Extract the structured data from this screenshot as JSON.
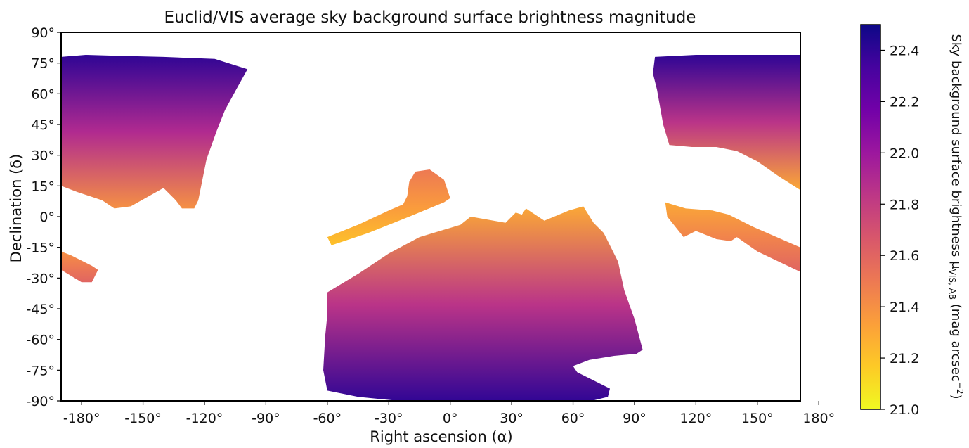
{
  "chart_data": {
    "type": "heatmap",
    "title": "Euclid/VIS average sky background surface brightness magnitude",
    "xlabel": "Right ascension (α)",
    "ylabel": "Declination  (δ)",
    "xlim": [
      -190,
      171
    ],
    "ylim": [
      -90,
      90
    ],
    "x_ticks": [
      -180,
      -150,
      -120,
      -90,
      -60,
      -30,
      0,
      30,
      60,
      90,
      120,
      150,
      180
    ],
    "x_tick_labels": [
      "-180°",
      "-150°",
      "-120°",
      "-90°",
      "-60°",
      "-30°",
      "0°",
      "30°",
      "60°",
      "90°",
      "120°",
      "150°",
      "180°"
    ],
    "y_ticks": [
      90,
      75,
      60,
      45,
      30,
      15,
      0,
      -15,
      -30,
      -45,
      -60,
      -75,
      -90
    ],
    "y_tick_labels": [
      "90°",
      "75°",
      "60°",
      "45°",
      "30°",
      "15°",
      "0°",
      "-15°",
      "-30°",
      "-45°",
      "-60°",
      "-75°",
      "-90°"
    ],
    "colorbar": {
      "label": "Sky background surface brightness μ",
      "label_sub": "VIS, AB",
      "label_units": " (mag arcsec",
      "label_sup": "−2",
      "label_end": ")",
      "range": [
        21.0,
        22.5
      ],
      "ticks": [
        21.0,
        21.2,
        21.4,
        21.6,
        21.8,
        22.0,
        22.2,
        22.4
      ],
      "tick_labels": [
        "21.0",
        "21.2",
        "21.4",
        "21.6",
        "21.8",
        "22.0",
        "22.2",
        "22.4"
      ],
      "colormap": "plasma_r",
      "colors": [
        "#f0f921",
        "#fdca26",
        "#fb9f3a",
        "#ed7953",
        "#d8576b",
        "#bd3786",
        "#9c179e",
        "#7201a8",
        "#46039f",
        "#0d0887"
      ]
    },
    "regions": [
      {
        "name": "north-west-cap",
        "outline": [
          [
            -190,
            78
          ],
          [
            -178,
            79
          ],
          [
            -160,
            78.5
          ],
          [
            -140,
            78
          ],
          [
            -115,
            77
          ],
          [
            -99,
            72
          ],
          [
            -104,
            63
          ],
          [
            -110,
            52
          ],
          [
            -114,
            42
          ],
          [
            -119,
            28
          ],
          [
            -123,
            8
          ],
          [
            -125,
            4
          ],
          [
            -131,
            4
          ],
          [
            -134,
            8
          ],
          [
            -140,
            14
          ],
          [
            -156,
            5
          ],
          [
            -164,
            4
          ],
          [
            -170,
            8
          ],
          [
            -182,
            12
          ],
          [
            -190,
            15
          ]
        ],
        "mag_min": 21.4,
        "mag_max": 22.4
      },
      {
        "name": "north-east-cap",
        "outline": [
          [
            100,
            78
          ],
          [
            120,
            79
          ],
          [
            140,
            79
          ],
          [
            160,
            79
          ],
          [
            171,
            79
          ],
          [
            171,
            13
          ],
          [
            160,
            20
          ],
          [
            150,
            27
          ],
          [
            140,
            32
          ],
          [
            130,
            34
          ],
          [
            118,
            34
          ],
          [
            107,
            35
          ],
          [
            104,
            45
          ],
          [
            101,
            62
          ],
          [
            99,
            70
          ]
        ],
        "mag_min": 21.3,
        "mag_max": 22.4
      },
      {
        "name": "south-cap",
        "outline": [
          [
            -60,
            -37
          ],
          [
            -45,
            -28
          ],
          [
            -30,
            -18
          ],
          [
            -15,
            -10
          ],
          [
            -5,
            -7
          ],
          [
            5,
            -4
          ],
          [
            10,
            0
          ],
          [
            27,
            -3
          ],
          [
            32,
            2
          ],
          [
            35,
            1
          ],
          [
            37,
            4
          ],
          [
            40,
            2
          ],
          [
            46,
            -2
          ],
          [
            58,
            3
          ],
          [
            65,
            5
          ],
          [
            70,
            -3
          ],
          [
            75,
            -8
          ],
          [
            82,
            -22
          ],
          [
            85,
            -36
          ],
          [
            90,
            -50
          ],
          [
            94,
            -65
          ],
          [
            91,
            -67
          ],
          [
            80,
            -68
          ],
          [
            68,
            -70
          ],
          [
            60,
            -73
          ],
          [
            62,
            -76
          ],
          [
            72,
            -81
          ],
          [
            78,
            -84
          ],
          [
            77,
            -88
          ],
          [
            65,
            -91
          ],
          [
            40,
            -91
          ],
          [
            15,
            -91
          ],
          [
            -15,
            -91
          ],
          [
            -45,
            -88
          ],
          [
            -60,
            -85
          ],
          [
            -62,
            -75
          ],
          [
            -61,
            -58
          ],
          [
            -60,
            -48
          ]
        ],
        "mag_min": 21.3,
        "mag_max": 22.4
      },
      {
        "name": "ecliptic-strip-west",
        "outline": [
          [
            -60,
            -10
          ],
          [
            -45,
            -4
          ],
          [
            -30,
            3
          ],
          [
            -23,
            6
          ],
          [
            -21,
            10
          ],
          [
            -20,
            17
          ],
          [
            -17,
            22
          ],
          [
            -10,
            23
          ],
          [
            -3,
            18
          ],
          [
            0,
            9
          ],
          [
            -3,
            7
          ],
          [
            -20,
            0
          ],
          [
            -40,
            -8
          ],
          [
            -58,
            -14
          ]
        ],
        "mag_min": 21.2,
        "mag_max": 21.5
      },
      {
        "name": "ecliptic-strip-east",
        "outline": [
          [
            105,
            7
          ],
          [
            115,
            4
          ],
          [
            128,
            3
          ],
          [
            136,
            1
          ],
          [
            148,
            -5
          ],
          [
            171,
            -15
          ],
          [
            171,
            -27
          ],
          [
            150,
            -17
          ],
          [
            140,
            -10
          ],
          [
            137,
            -12
          ],
          [
            130,
            -11
          ],
          [
            120,
            -7
          ],
          [
            114,
            -10
          ],
          [
            106,
            0
          ]
        ],
        "mag_min": 21.3,
        "mag_max": 21.6
      },
      {
        "name": "west-small-patch",
        "outline": [
          [
            -190,
            -17
          ],
          [
            -185,
            -19
          ],
          [
            -175,
            -24
          ],
          [
            -172,
            -26
          ],
          [
            -175,
            -32
          ],
          [
            -180,
            -32
          ],
          [
            -190,
            -26
          ]
        ],
        "mag_min": 21.4,
        "mag_max": 21.6
      }
    ]
  }
}
